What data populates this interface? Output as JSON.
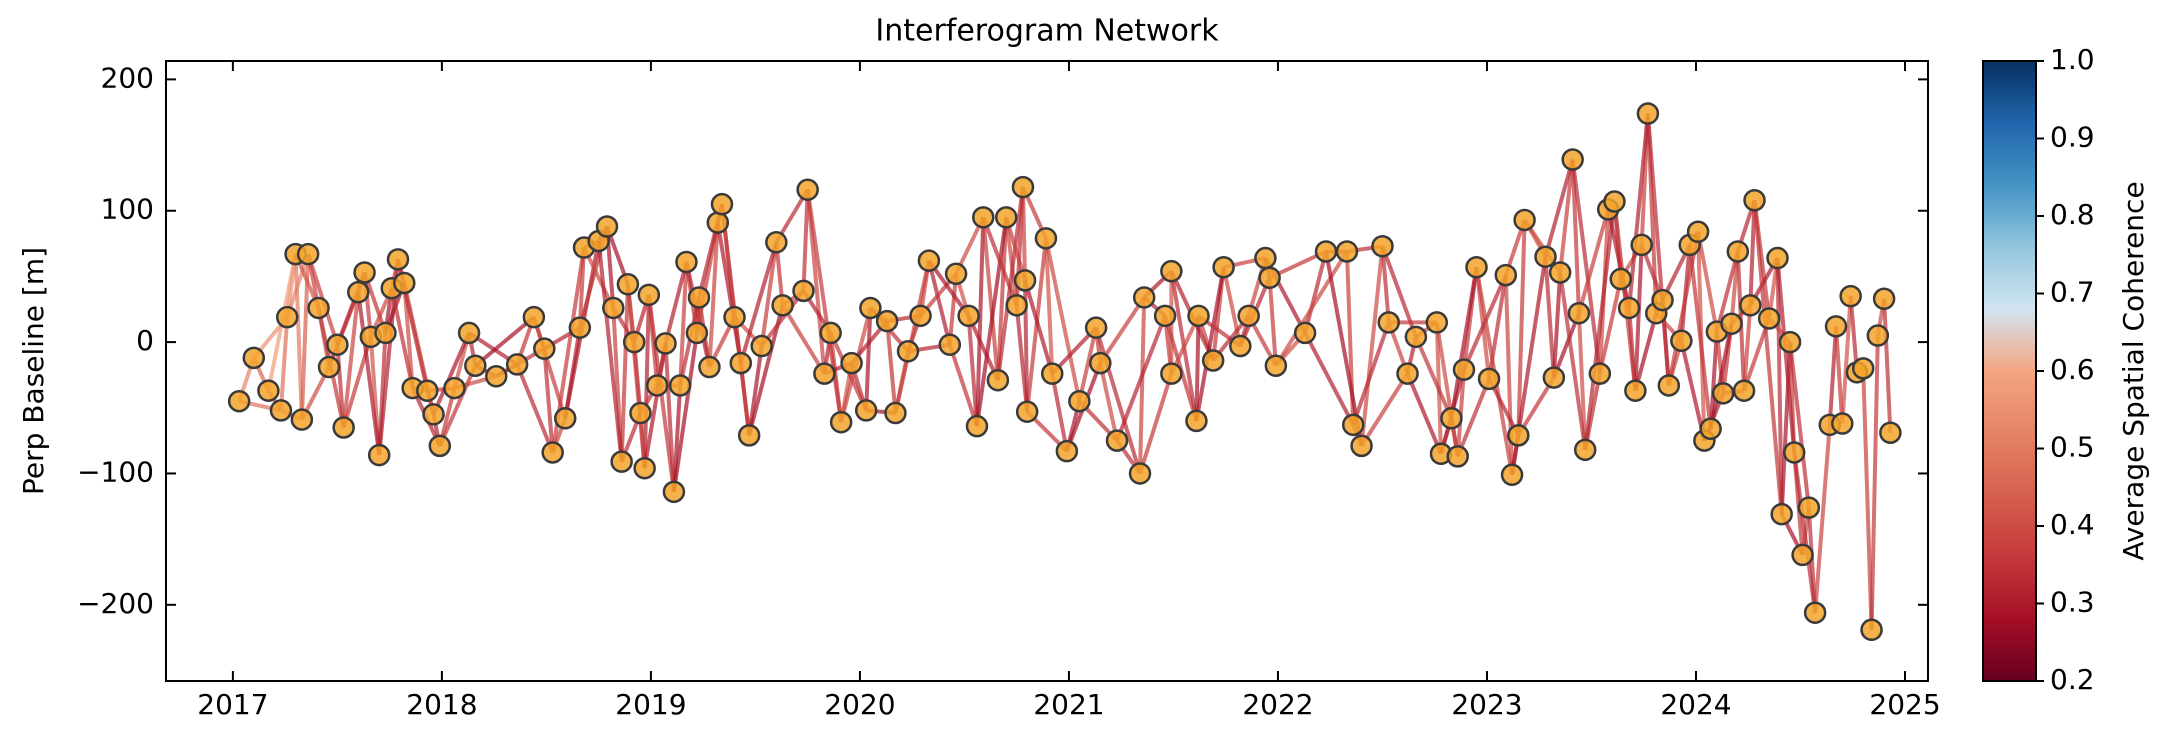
{
  "chart_data": {
    "type": "network",
    "title": "Interferogram Network",
    "y_label": "Perp Baseline [m]",
    "colorbar_label": "Average Spatial Coherence",
    "xlim": [
      2016.68,
      2025.11
    ],
    "xticks": [
      2017,
      2018,
      2019,
      2020,
      2021,
      2022,
      2023,
      2024,
      2025
    ],
    "ylim": [
      -258,
      214
    ],
    "yticks": [
      {
        "value": -200,
        "label": "−200"
      },
      {
        "value": -100,
        "label": "−100"
      },
      0,
      100,
      200
    ],
    "clim": [
      0.2,
      1.0
    ],
    "cticks": [
      0.2,
      0.3,
      0.4,
      0.5,
      0.6,
      0.7,
      0.8,
      0.9,
      {
        "value": 1.0,
        "label": "1.0"
      }
    ],
    "colormap": [
      "#67001f",
      "#a50f26",
      "#c4393b",
      "#d6604d",
      "#e58368",
      "#f4a582",
      "#d1e5f0",
      "#92c5de",
      "#4393c3",
      "#2166ac",
      "#053061"
    ],
    "marker_color": "#f5a42a",
    "marker_edge_color": "#3a3a3a",
    "nodes": {
      "x": [
        2017.03,
        2017.1,
        2017.17,
        2017.23,
        2017.26,
        2017.3,
        2017.33,
        2017.36,
        2017.41,
        2017.46,
        2017.5,
        2017.53,
        2017.6,
        2017.63,
        2017.66,
        2017.7,
        2017.73,
        2017.76,
        2017.79,
        2017.82,
        2017.86,
        2017.93,
        2017.96,
        2017.99,
        2018.06,
        2018.13,
        2018.16,
        2018.26,
        2018.36,
        2018.44,
        2018.49,
        2018.53,
        2018.59,
        2018.66,
        2018.68,
        2018.75,
        2018.79,
        2018.82,
        2018.86,
        2018.89,
        2018.92,
        2018.95,
        2018.97,
        2018.99,
        2019.03,
        2019.07,
        2019.11,
        2019.14,
        2019.17,
        2019.22,
        2019.23,
        2019.28,
        2019.32,
        2019.34,
        2019.4,
        2019.43,
        2019.47,
        2019.53,
        2019.6,
        2019.63,
        2019.73,
        2019.75,
        2019.83,
        2019.86,
        2019.91,
        2019.96,
        2020.03,
        2020.05,
        2020.13,
        2020.17,
        2020.23,
        2020.29,
        2020.33,
        2020.43,
        2020.46,
        2020.52,
        2020.56,
        2020.59,
        2020.66,
        2020.7,
        2020.75,
        2020.78,
        2020.79,
        2020.8,
        2020.89,
        2020.92,
        2020.99,
        2021.05,
        2021.13,
        2021.15,
        2021.23,
        2021.34,
        2021.36,
        2021.46,
        2021.49,
        2021.49,
        2021.61,
        2021.62,
        2021.69,
        2021.74,
        2021.82,
        2021.86,
        2021.94,
        2021.96,
        2021.99,
        2022.13,
        2022.23,
        2022.33,
        2022.36,
        2022.4,
        2022.5,
        2022.53,
        2022.62,
        2022.66,
        2022.76,
        2022.78,
        2022.83,
        2022.86,
        2022.89,
        2022.95,
        2023.01,
        2023.09,
        2023.12,
        2023.15,
        2023.18,
        2023.28,
        2023.32,
        2023.35,
        2023.41,
        2023.44,
        2023.47,
        2023.54,
        2023.58,
        2023.61,
        2023.64,
        2023.68,
        2023.71,
        2023.74,
        2023.77,
        2023.81,
        2023.84,
        2023.87,
        2023.93,
        2023.97,
        2024.01,
        2024.04,
        2024.07,
        2024.1,
        2024.13,
        2024.17,
        2024.2,
        2024.23,
        2024.26,
        2024.28,
        2024.35,
        2024.39,
        2024.41,
        2024.45,
        2024.47,
        2024.51,
        2024.54,
        2024.57,
        2024.64,
        2024.67,
        2024.7,
        2024.74,
        2024.77,
        2024.8,
        2024.84,
        2024.87,
        2024.9,
        2024.93
      ],
      "y": [
        -45,
        -12,
        -37,
        -52,
        19,
        67,
        -59,
        67,
        26,
        -19,
        -2,
        -65,
        38,
        53,
        4,
        -86,
        7,
        41,
        63,
        45,
        -35,
        -37,
        -55,
        -79,
        -35,
        7,
        -18,
        -26,
        -17,
        19,
        -5,
        -84,
        -58,
        11,
        72,
        77,
        88,
        26,
        -91,
        44,
        0,
        -54,
        -96,
        36,
        -33,
        -1,
        -114,
        -33,
        61,
        7,
        34,
        -19,
        91,
        105,
        19,
        -16,
        -71,
        -3,
        76,
        28,
        39,
        116,
        -24,
        7,
        -61,
        -16,
        -52,
        26,
        16,
        -54,
        -7,
        20,
        62,
        -2,
        52,
        20,
        -64,
        95,
        -29,
        95,
        28,
        118,
        47,
        -53,
        79,
        -24,
        -83,
        -45,
        11,
        -16,
        -75,
        -100,
        34,
        20,
        -24,
        54,
        -60,
        20,
        -14,
        57,
        -3,
        20,
        64,
        49,
        -18,
        7,
        69,
        69,
        -63,
        -79,
        73,
        15,
        -24,
        4,
        15,
        -85,
        -58,
        -87,
        -21,
        57,
        -28,
        51,
        -101,
        -71,
        93,
        65,
        -27,
        53,
        139,
        22,
        -82,
        -24,
        101,
        107,
        48,
        26,
        -37,
        74,
        174,
        22,
        32,
        -33,
        1,
        74,
        84,
        -75,
        -66,
        8,
        -39,
        14,
        69,
        -37,
        28,
        108,
        18,
        64,
        -131,
        0,
        -84,
        -162,
        -126,
        -206,
        -63,
        12,
        -62,
        35,
        -23,
        -20,
        -219,
        5,
        33,
        -69
      ]
    },
    "edges": {
      "from": [
        0,
        1,
        2,
        3,
        4,
        5,
        6,
        7,
        8,
        9,
        10,
        11,
        12,
        13,
        14,
        15,
        16,
        17,
        18,
        19,
        20,
        21,
        22,
        23,
        24,
        25,
        26,
        27,
        28,
        29,
        30,
        31,
        32,
        33,
        34,
        35,
        36,
        37,
        38,
        39,
        40,
        41,
        42,
        43,
        44,
        45,
        46,
        47,
        48,
        49,
        50,
        51,
        52,
        53,
        54,
        55,
        56,
        57,
        58,
        59,
        60,
        61,
        62,
        63,
        64,
        65,
        66,
        67,
        68,
        69,
        70,
        71,
        72,
        73,
        74,
        75,
        76,
        77,
        78,
        79,
        80,
        81,
        82,
        83,
        84,
        85,
        86,
        87,
        88,
        89,
        90,
        91,
        92,
        93,
        94,
        95,
        96,
        97,
        98,
        99,
        100,
        101,
        102,
        103,
        104,
        105,
        106,
        107,
        108,
        109,
        110,
        111,
        112,
        113,
        114,
        115,
        116,
        117,
        118,
        119,
        120,
        121,
        122,
        123,
        124,
        125,
        126,
        127,
        128,
        129,
        130,
        131,
        132,
        133,
        134,
        135,
        136,
        137,
        138,
        139,
        140,
        141,
        142,
        143,
        144,
        145,
        146,
        147,
        148,
        149,
        150,
        151,
        152,
        153,
        154,
        155,
        156,
        157,
        158,
        159,
        160,
        161,
        162,
        163,
        164,
        165,
        166,
        167,
        168,
        169,
        170,
        0,
        1,
        2,
        3,
        4,
        5,
        6,
        7,
        8,
        9,
        10,
        11,
        12,
        13,
        14,
        15,
        16,
        17,
        18,
        19,
        20,
        21,
        22,
        23,
        24,
        25,
        26,
        27,
        28,
        29,
        30,
        31,
        32,
        33,
        34,
        35,
        36,
        37,
        38,
        39,
        40,
        41,
        42,
        43,
        44,
        45,
        46,
        47,
        48,
        49,
        50,
        51,
        52,
        53,
        54,
        55,
        56,
        57,
        58,
        59,
        60,
        61,
        62,
        63,
        64,
        65,
        66,
        67,
        68,
        69,
        70,
        71,
        72,
        73,
        74,
        75,
        76,
        77,
        78,
        79,
        80,
        81,
        82,
        83,
        84,
        85,
        86,
        87,
        88,
        89,
        90,
        91,
        92,
        93,
        94,
        95,
        96,
        97,
        98,
        99,
        100,
        101,
        102,
        103,
        104,
        105,
        106,
        107,
        108,
        109,
        110,
        111,
        112,
        113,
        114,
        115,
        116,
        117,
        118,
        119,
        120,
        121,
        122,
        123,
        124,
        125,
        126,
        127,
        128,
        129,
        130,
        131,
        132,
        133,
        134,
        135,
        136,
        137,
        138,
        139,
        140,
        141,
        142,
        143,
        144,
        145,
        146,
        147,
        148,
        149,
        150,
        151,
        152,
        153,
        154,
        155,
        156,
        157,
        158,
        159,
        160,
        161,
        162,
        163,
        164,
        165,
        166,
        167,
        168
      ],
      "to": [
        1,
        2,
        3,
        4,
        5,
        6,
        7,
        8,
        9,
        10,
        11,
        12,
        13,
        14,
        15,
        16,
        17,
        18,
        19,
        20,
        21,
        22,
        23,
        24,
        25,
        26,
        27,
        28,
        29,
        30,
        31,
        32,
        33,
        34,
        35,
        36,
        37,
        38,
        39,
        40,
        41,
        42,
        43,
        44,
        45,
        46,
        47,
        48,
        49,
        50,
        51,
        52,
        53,
        54,
        55,
        56,
        57,
        58,
        59,
        60,
        61,
        62,
        63,
        64,
        65,
        66,
        67,
        68,
        69,
        70,
        71,
        72,
        73,
        74,
        75,
        76,
        77,
        78,
        79,
        80,
        81,
        82,
        83,
        84,
        85,
        86,
        87,
        88,
        89,
        90,
        91,
        92,
        93,
        94,
        95,
        96,
        97,
        98,
        99,
        100,
        101,
        102,
        103,
        104,
        105,
        106,
        107,
        108,
        109,
        110,
        111,
        112,
        113,
        114,
        115,
        116,
        117,
        118,
        119,
        120,
        121,
        122,
        123,
        124,
        125,
        126,
        127,
        128,
        129,
        130,
        131,
        132,
        133,
        134,
        135,
        136,
        137,
        138,
        139,
        140,
        141,
        142,
        143,
        144,
        145,
        146,
        147,
        148,
        149,
        150,
        151,
        152,
        153,
        154,
        155,
        156,
        157,
        158,
        159,
        160,
        161,
        162,
        163,
        164,
        165,
        166,
        167,
        168,
        169,
        170,
        171,
        3,
        4,
        5,
        6,
        7,
        8,
        9,
        10,
        11,
        12,
        13,
        14,
        15,
        16,
        17,
        18,
        19,
        20,
        21,
        22,
        23,
        24,
        25,
        26,
        27,
        28,
        29,
        30,
        31,
        32,
        33,
        34,
        35,
        36,
        37,
        38,
        39,
        40,
        41,
        42,
        43,
        44,
        45,
        46,
        47,
        48,
        49,
        50,
        51,
        52,
        53,
        54,
        55,
        56,
        57,
        58,
        59,
        60,
        61,
        62,
        63,
        64,
        65,
        66,
        67,
        68,
        69,
        70,
        71,
        72,
        73,
        74,
        75,
        76,
        77,
        78,
        79,
        80,
        81,
        82,
        83,
        84,
        85,
        86,
        87,
        88,
        89,
        90,
        91,
        92,
        93,
        94,
        95,
        96,
        97,
        98,
        99,
        100,
        101,
        102,
        103,
        104,
        105,
        106,
        107,
        108,
        109,
        110,
        111,
        112,
        113,
        114,
        115,
        116,
        117,
        118,
        119,
        120,
        121,
        122,
        123,
        124,
        125,
        126,
        127,
        128,
        129,
        130,
        131,
        132,
        133,
        134,
        135,
        136,
        137,
        138,
        139,
        140,
        141,
        142,
        143,
        144,
        145,
        146,
        147,
        148,
        149,
        150,
        151,
        152,
        153,
        154,
        155,
        156,
        157,
        158,
        159,
        160,
        161,
        162,
        163,
        164,
        165,
        166,
        167,
        168,
        169,
        170,
        171
      ],
      "coherence": [
        0.52,
        0.45,
        0.4,
        0.48,
        0.55,
        0.5,
        0.44,
        0.38,
        0.41,
        0.36,
        0.34,
        0.38,
        0.31,
        0.36,
        0.41,
        0.33,
        0.29,
        0.37,
        0.35,
        0.39,
        0.34,
        0.38,
        0.31,
        0.36,
        0.41,
        0.33,
        0.29,
        0.37,
        0.35,
        0.39,
        0.34,
        0.38,
        0.31,
        0.36,
        0.41,
        0.33,
        0.29,
        0.37,
        0.35,
        0.39,
        0.34,
        0.38,
        0.31,
        0.36,
        0.41,
        0.33,
        0.29,
        0.37,
        0.35,
        0.39,
        0.34,
        0.38,
        0.31,
        0.36,
        0.41,
        0.33,
        0.29,
        0.37,
        0.35,
        0.39,
        0.34,
        0.38,
        0.31,
        0.36,
        0.41,
        0.33,
        0.29,
        0.37,
        0.35,
        0.39,
        0.34,
        0.38,
        0.31,
        0.36,
        0.41,
        0.33,
        0.29,
        0.37,
        0.35,
        0.39,
        0.34,
        0.38,
        0.31,
        0.36,
        0.41,
        0.33,
        0.29,
        0.37,
        0.35,
        0.39,
        0.34,
        0.38,
        0.31,
        0.36,
        0.41,
        0.33,
        0.29,
        0.37,
        0.35,
        0.39,
        0.34,
        0.38,
        0.31,
        0.36,
        0.41,
        0.33,
        0.29,
        0.37,
        0.35,
        0.39,
        0.34,
        0.38,
        0.31,
        0.36,
        0.41,
        0.33,
        0.29,
        0.37,
        0.35,
        0.39,
        0.34,
        0.38,
        0.31,
        0.36,
        0.41,
        0.33,
        0.29,
        0.37,
        0.35,
        0.39,
        0.34,
        0.38,
        0.31,
        0.36,
        0.41,
        0.33,
        0.29,
        0.37,
        0.35,
        0.39,
        0.34,
        0.38,
        0.31,
        0.36,
        0.41,
        0.33,
        0.29,
        0.37,
        0.35,
        0.39,
        0.34,
        0.38,
        0.31,
        0.36,
        0.41,
        0.33,
        0.29,
        0.37,
        0.35,
        0.39,
        0.34,
        0.38,
        0.31,
        0.36,
        0.41,
        0.33,
        0.29,
        0.37,
        0.35,
        0.39,
        0.34,
        0.48,
        0.55,
        0.58,
        0.47,
        0.52,
        0.42,
        0.4,
        0.37,
        0.35,
        0.38,
        0.32,
        0.36,
        0.3,
        0.35,
        0.39,
        0.31,
        0.28,
        0.34,
        0.33,
        0.37,
        0.32,
        0.36,
        0.3,
        0.35,
        0.39,
        0.31,
        0.28,
        0.34,
        0.33,
        0.37,
        0.32,
        0.36,
        0.3,
        0.35,
        0.39,
        0.31,
        0.28,
        0.34,
        0.33,
        0.37,
        0.32,
        0.36,
        0.3,
        0.35,
        0.39,
        0.31,
        0.28,
        0.34,
        0.33,
        0.37,
        0.32,
        0.36,
        0.3,
        0.35,
        0.39,
        0.31,
        0.28,
        0.34,
        0.33,
        0.37,
        0.32,
        0.36,
        0.3,
        0.35,
        0.39,
        0.31,
        0.28,
        0.34,
        0.33,
        0.37,
        0.32,
        0.36,
        0.3,
        0.35,
        0.39,
        0.31,
        0.28,
        0.34,
        0.33,
        0.37,
        0.32,
        0.36,
        0.3,
        0.35,
        0.39,
        0.31,
        0.28,
        0.34,
        0.33,
        0.37,
        0.32,
        0.36,
        0.3,
        0.35,
        0.39,
        0.31,
        0.28,
        0.34,
        0.33,
        0.37,
        0.32,
        0.36,
        0.3,
        0.35,
        0.39,
        0.31,
        0.28,
        0.34,
        0.33,
        0.37,
        0.32,
        0.36,
        0.3,
        0.35,
        0.39,
        0.31,
        0.28,
        0.34,
        0.33,
        0.37,
        0.32,
        0.36,
        0.3,
        0.35,
        0.39,
        0.31,
        0.28,
        0.34,
        0.33,
        0.37,
        0.32,
        0.36,
        0.3,
        0.35,
        0.39,
        0.31,
        0.28,
        0.34,
        0.33,
        0.37,
        0.32,
        0.36,
        0.3,
        0.35,
        0.39,
        0.31,
        0.28,
        0.34,
        0.33,
        0.37,
        0.32,
        0.36,
        0.3,
        0.35,
        0.39,
        0.31,
        0.28,
        0.34,
        0.33
      ]
    }
  }
}
